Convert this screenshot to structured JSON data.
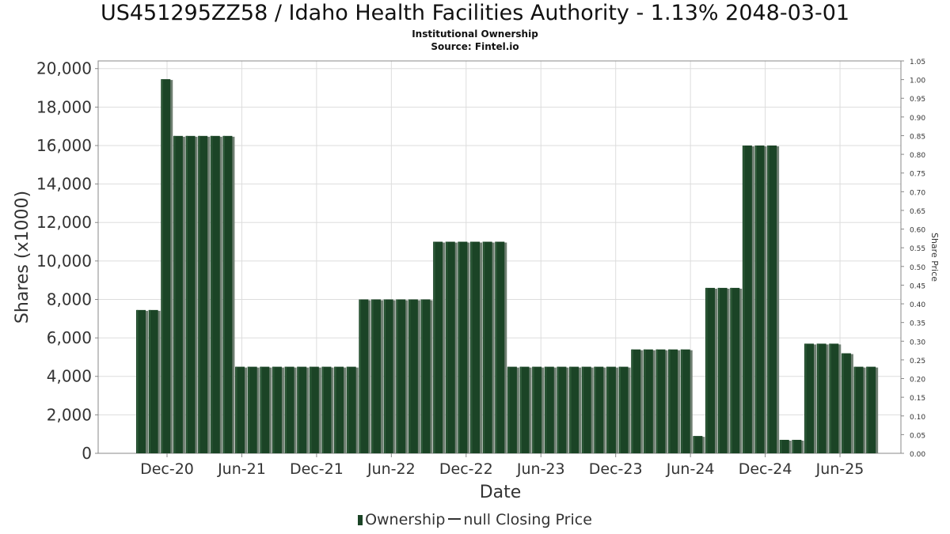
{
  "chart_data": {
    "type": "bar",
    "title": "US451295ZZ58 / Idaho Health Facilities Authority - 1.13% 2048-03-01",
    "subtitle": "Institutional Ownership",
    "source": "Source: Fintel.io",
    "xlabel": "Date",
    "ylabel": "Shares (x1000)",
    "y2label": "Share Price",
    "ylim": [
      0,
      20400
    ],
    "y2lim": [
      0,
      1.05
    ],
    "grid": true,
    "legend_position": "bottom-center",
    "yticks": [
      "0",
      "2,000",
      "4,000",
      "6,000",
      "8,000",
      "10,000",
      "12,000",
      "14,000",
      "16,000",
      "18,000",
      "20,000"
    ],
    "y2ticks": [
      "0.00",
      "0.05",
      "0.10",
      "0.15",
      "0.20",
      "0.25",
      "0.30",
      "0.35",
      "0.40",
      "0.45",
      "0.50",
      "0.55",
      "0.60",
      "0.65",
      "0.70",
      "0.75",
      "0.80",
      "0.85",
      "0.90",
      "0.95",
      "1.00",
      "1.05"
    ],
    "xticks": [
      "Dec-20",
      "Jun-21",
      "Dec-21",
      "Jun-22",
      "Dec-22",
      "Jun-23",
      "Dec-23",
      "Jun-24",
      "Dec-24",
      "Jun-25"
    ],
    "bar_color": "#1b4426",
    "shadow_color": "#6f7f72",
    "series": [
      {
        "name": "Ownership",
        "values": [
          7450,
          7450,
          19450,
          16500,
          16500,
          16500,
          16500,
          16500,
          4500,
          4500,
          4500,
          4500,
          4500,
          4500,
          4500,
          4500,
          4500,
          4500,
          8000,
          8000,
          8000,
          8000,
          8000,
          8000,
          11000,
          11000,
          11000,
          11000,
          11000,
          11000,
          4500,
          4500,
          4500,
          4500,
          4500,
          4500,
          4500,
          4500,
          4500,
          4500,
          5400,
          5400,
          5400,
          5400,
          5400,
          900,
          8600,
          8600,
          8600,
          16000,
          16000,
          16000,
          700,
          700,
          5700,
          5700,
          5700,
          5200,
          4500,
          4500
        ]
      }
    ],
    "legend": [
      "Ownership",
      "null Closing Price"
    ]
  }
}
